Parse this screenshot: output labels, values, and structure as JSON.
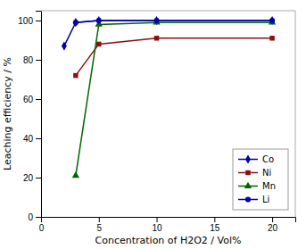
{
  "chart_data": {
    "type": "line",
    "xlabel": "Concentration of H2O2 / Vol%",
    "ylabel": "Leaching efficiency / %",
    "xlim": [
      0,
      22
    ],
    "ylim": [
      0,
      105
    ],
    "xticks": [
      0,
      5,
      10,
      15,
      20
    ],
    "yticks": [
      0,
      20,
      40,
      60,
      80,
      100
    ],
    "grid": false,
    "legend": "lower right",
    "series": [
      {
        "name": "Co",
        "color": "#0000AA",
        "marker": "diamond",
        "x": [
          2,
          3,
          5,
          10,
          20
        ],
        "values": [
          87,
          99,
          100,
          100,
          100
        ]
      },
      {
        "name": "Ni",
        "color": "#8B1010",
        "marker": "square",
        "x": [
          3,
          5,
          10,
          20
        ],
        "values": [
          72,
          88,
          91,
          91
        ]
      },
      {
        "name": "Mn",
        "color": "#006400",
        "marker": "triangle",
        "x": [
          3,
          5,
          10,
          20
        ],
        "values": [
          21,
          98,
          99,
          99
        ]
      },
      {
        "name": "Li",
        "color": "#0000AA",
        "marker": "circle",
        "x": [
          3,
          5,
          10,
          20
        ],
        "values": [
          99,
          100,
          100,
          100
        ]
      }
    ]
  }
}
